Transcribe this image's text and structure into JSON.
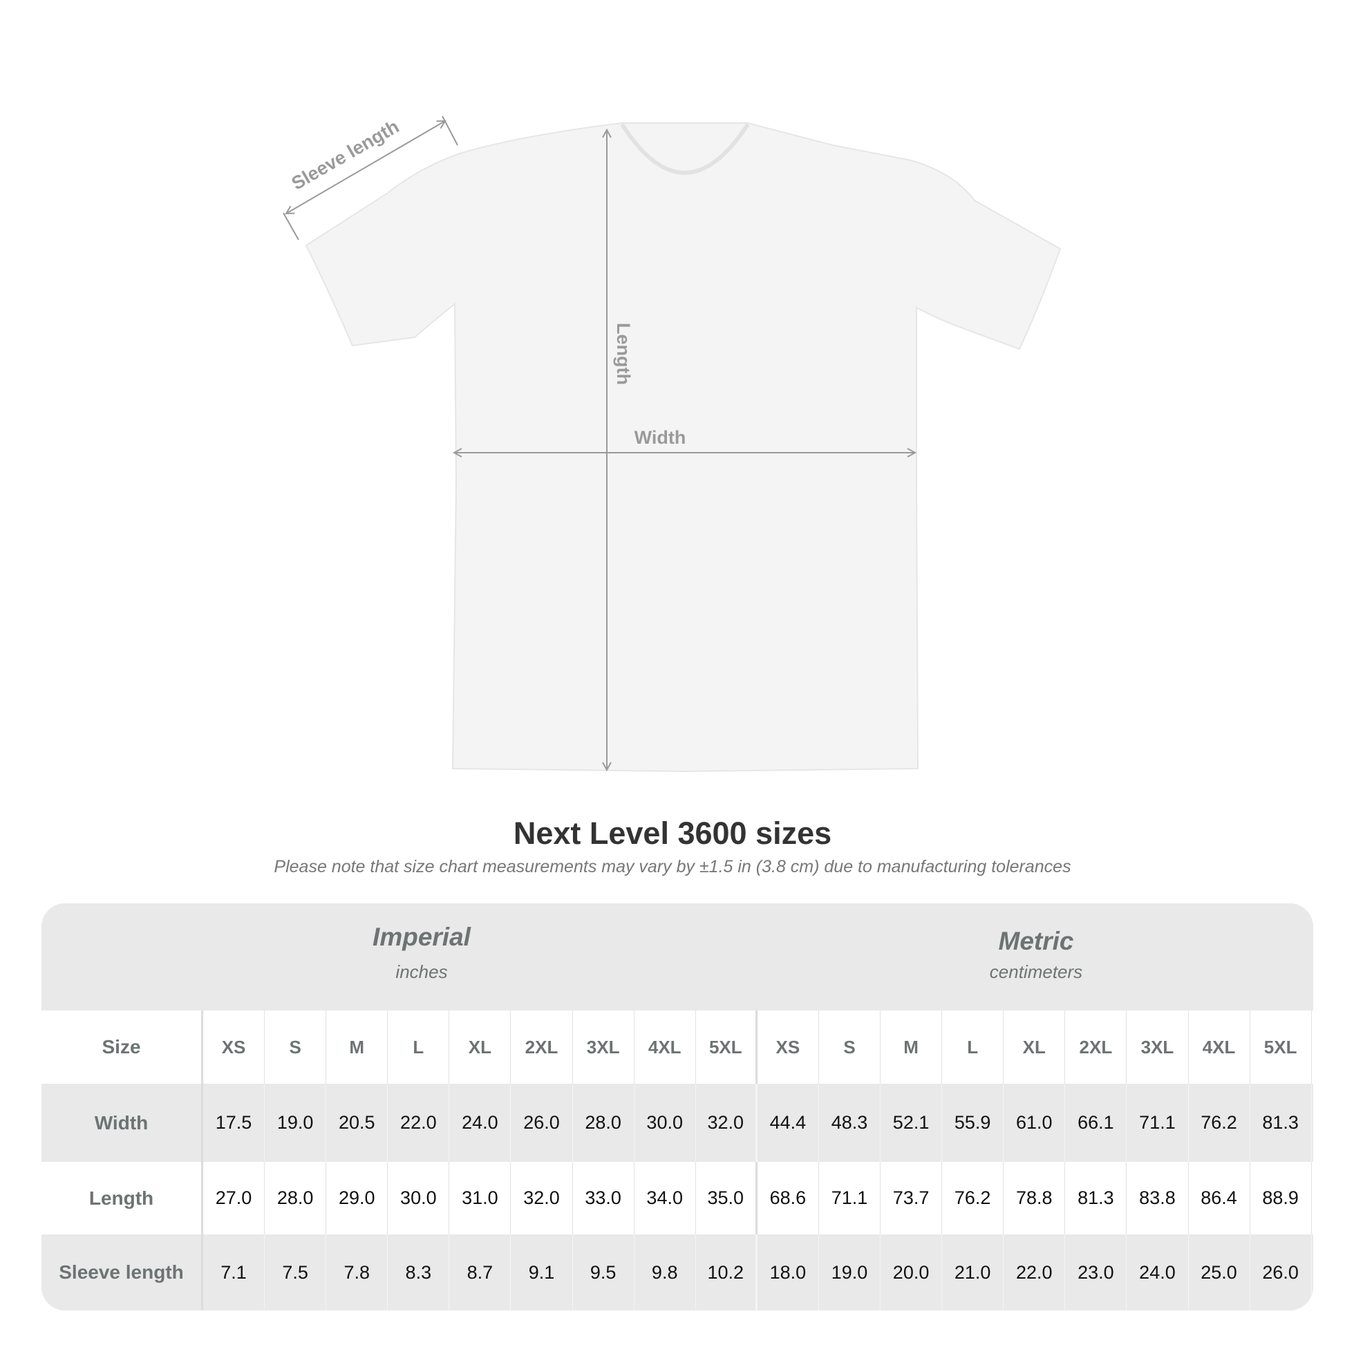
{
  "diagram": {
    "labels": {
      "sleeve": "Sleeve length",
      "length": "Length",
      "width": "Width"
    }
  },
  "title": "Next Level 3600 sizes",
  "subtitle": "Please note that size chart measurements may vary by ±1.5 in (3.8 cm) due to manufacturing tolerances",
  "table": {
    "imperial": {
      "name": "Imperial",
      "unit": "inches"
    },
    "metric": {
      "name": "Metric",
      "unit": "centimeters"
    },
    "size_label": "Size",
    "sizes": [
      "XS",
      "S",
      "M",
      "L",
      "XL",
      "2XL",
      "3XL",
      "4XL",
      "5XL"
    ],
    "rows": [
      {
        "label": "Width",
        "imperial": [
          "17.5",
          "19.0",
          "20.5",
          "22.0",
          "24.0",
          "26.0",
          "28.0",
          "30.0",
          "32.0"
        ],
        "metric": [
          "44.4",
          "48.3",
          "52.1",
          "55.9",
          "61.0",
          "66.1",
          "71.1",
          "76.2",
          "81.3"
        ]
      },
      {
        "label": "Length",
        "imperial": [
          "27.0",
          "28.0",
          "29.0",
          "30.0",
          "31.0",
          "32.0",
          "33.0",
          "34.0",
          "35.0"
        ],
        "metric": [
          "68.6",
          "71.1",
          "73.7",
          "76.2",
          "78.8",
          "81.3",
          "83.8",
          "86.4",
          "88.9"
        ]
      },
      {
        "label": "Sleeve length",
        "imperial": [
          "7.1",
          "7.5",
          "7.8",
          "8.3",
          "8.7",
          "9.1",
          "9.5",
          "9.8",
          "10.2"
        ],
        "metric": [
          "18.0",
          "19.0",
          "20.0",
          "21.0",
          "22.0",
          "23.0",
          "24.0",
          "25.0",
          "26.0"
        ]
      }
    ]
  },
  "colors": {
    "header_text": "#6d7373",
    "band": "#e9e9e9",
    "measure_line": "#9a9a9a"
  }
}
